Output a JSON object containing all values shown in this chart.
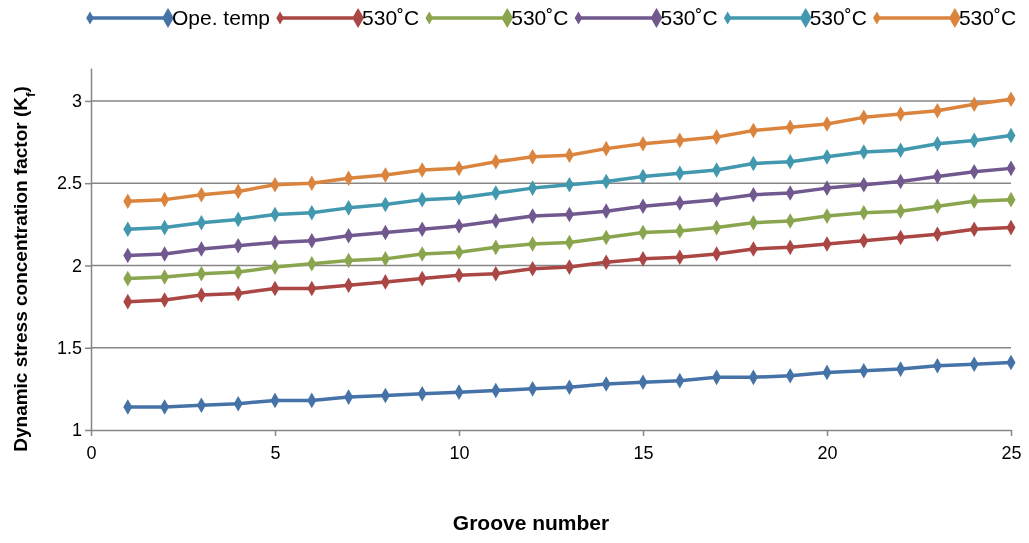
{
  "chart_data": {
    "type": "line",
    "xlabel": "Groove number",
    "ylabel": "Dynamic stress concentration factor (K$_{f}$)",
    "x": [
      1,
      2,
      3,
      4,
      5,
      6,
      7,
      8,
      9,
      10,
      11,
      12,
      13,
      14,
      15,
      16,
      17,
      18,
      19,
      20,
      21,
      22,
      23,
      24,
      25
    ],
    "xlim": [
      0,
      25
    ],
    "xticks": [
      0,
      5,
      10,
      15,
      20,
      25
    ],
    "ylim": [
      1,
      3.2
    ],
    "yticks": [
      1,
      1.5,
      2,
      2.5,
      3
    ],
    "grid": "y",
    "legend": "top",
    "marker": "diamond",
    "line_style": "solid",
    "series": [
      {
        "name": "Ope. temp",
        "color": "#4572a7",
        "values": [
          1.14,
          1.14,
          1.15,
          1.16,
          1.18,
          1.18,
          1.2,
          1.21,
          1.22,
          1.23,
          1.24,
          1.25,
          1.26,
          1.28,
          1.29,
          1.3,
          1.32,
          1.32,
          1.33,
          1.35,
          1.36,
          1.37,
          1.39,
          1.4,
          1.41
        ]
      },
      {
        "name": "530˚C",
        "color": "#aa4643",
        "values": [
          1.78,
          1.79,
          1.82,
          1.83,
          1.86,
          1.86,
          1.88,
          1.9,
          1.92,
          1.94,
          1.95,
          1.98,
          1.99,
          2.02,
          2.04,
          2.05,
          2.07,
          2.1,
          2.11,
          2.13,
          2.15,
          2.17,
          2.19,
          2.22,
          2.23
        ]
      },
      {
        "name": "530˚C",
        "color": "#89a54e",
        "values": [
          1.92,
          1.93,
          1.95,
          1.96,
          1.99,
          2.01,
          2.03,
          2.04,
          2.07,
          2.08,
          2.11,
          2.13,
          2.14,
          2.17,
          2.2,
          2.21,
          2.23,
          2.26,
          2.27,
          2.3,
          2.32,
          2.33,
          2.36,
          2.39,
          2.4
        ]
      },
      {
        "name": "530˚C",
        "color": "#71588f",
        "values": [
          2.06,
          2.07,
          2.1,
          2.12,
          2.14,
          2.15,
          2.18,
          2.2,
          2.22,
          2.24,
          2.27,
          2.3,
          2.31,
          2.33,
          2.36,
          2.38,
          2.4,
          2.43,
          2.44,
          2.47,
          2.49,
          2.51,
          2.54,
          2.57,
          2.59
        ]
      },
      {
        "name": "530˚C",
        "color": "#4198af",
        "values": [
          2.22,
          2.23,
          2.26,
          2.28,
          2.31,
          2.32,
          2.35,
          2.37,
          2.4,
          2.41,
          2.44,
          2.47,
          2.49,
          2.51,
          2.54,
          2.56,
          2.58,
          2.62,
          2.63,
          2.66,
          2.69,
          2.7,
          2.74,
          2.76,
          2.79
        ]
      },
      {
        "name": "530˚C",
        "color": "#db843d",
        "values": [
          2.39,
          2.4,
          2.43,
          2.45,
          2.49,
          2.5,
          2.53,
          2.55,
          2.58,
          2.59,
          2.63,
          2.66,
          2.67,
          2.71,
          2.74,
          2.76,
          2.78,
          2.82,
          2.84,
          2.86,
          2.9,
          2.92,
          2.94,
          2.98,
          3.01
        ]
      }
    ]
  }
}
